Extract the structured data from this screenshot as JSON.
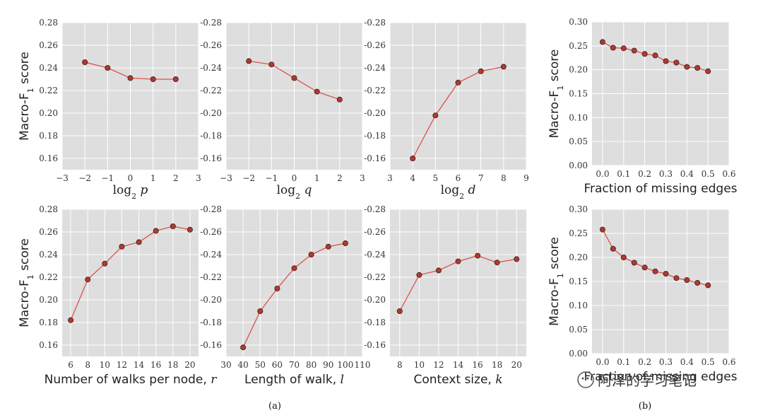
{
  "colors": {
    "background": "#dedede",
    "line": "#d9534f",
    "marker_fill": "#b03a2e",
    "marker_edge": "#3a1c1c",
    "grid": "#ffffff"
  },
  "captions": {
    "a": "(a)",
    "b": "(b)"
  },
  "watermark": "阿泽的学习笔记",
  "chart_data": [
    {
      "id": "p1",
      "type": "line",
      "x": [
        -2,
        -1,
        0,
        1,
        2
      ],
      "values": [
        0.245,
        0.24,
        0.231,
        0.23,
        0.23
      ],
      "xlim": [
        -3,
        3
      ],
      "ylim": [
        0.15,
        0.28
      ],
      "xticks": [
        "−3",
        "−2",
        "−1",
        "0",
        "1",
        "2",
        "3"
      ],
      "xtick_values": [
        -3,
        -2,
        -1,
        0,
        1,
        2,
        3
      ],
      "yticks": [
        "0.16",
        "0.18",
        "0.20",
        "0.22",
        "0.24",
        "0.26",
        "0.28"
      ],
      "ytick_values": [
        0.16,
        0.18,
        0.2,
        0.22,
        0.24,
        0.26,
        0.28
      ],
      "ylabel": "Macro-F",
      "ylabel_sub": "1",
      "ylabel_tail": " score",
      "xlabel_prefix": "log",
      "xlabel_sub": "2",
      "xlabel_var": " p"
    },
    {
      "id": "p2",
      "type": "line",
      "x": [
        -2,
        -1,
        0,
        1,
        2
      ],
      "values": [
        0.246,
        0.243,
        0.231,
        0.219,
        0.212
      ],
      "xlim": [
        -3,
        3
      ],
      "ylim": [
        0.15,
        0.28
      ],
      "xticks": [
        "−3",
        "−2",
        "−1",
        "0",
        "1",
        "2",
        "3"
      ],
      "xtick_values": [
        -3,
        -2,
        -1,
        0,
        1,
        2,
        3
      ],
      "yticks": [
        "-0.16",
        "-0.18",
        "-0.20",
        "-0.22",
        "-0.24",
        "-0.26",
        "-0.28"
      ],
      "ytick_values": [
        0.16,
        0.18,
        0.2,
        0.22,
        0.24,
        0.26,
        0.28
      ],
      "xlabel_prefix": "log",
      "xlabel_sub": "2",
      "xlabel_var": " q"
    },
    {
      "id": "p3",
      "type": "line",
      "x": [
        4,
        5,
        6,
        7,
        8
      ],
      "values": [
        0.16,
        0.198,
        0.227,
        0.237,
        0.241
      ],
      "xlim": [
        3,
        9
      ],
      "ylim": [
        0.15,
        0.28
      ],
      "xticks": [
        "3",
        "4",
        "5",
        "6",
        "7",
        "8",
        "9"
      ],
      "xtick_values": [
        3,
        4,
        5,
        6,
        7,
        8,
        9
      ],
      "yticks": [
        "-0.16",
        "-0.18",
        "-0.20",
        "-0.22",
        "-0.24",
        "-0.26",
        "-0.28"
      ],
      "ytick_values": [
        0.16,
        0.18,
        0.2,
        0.22,
        0.24,
        0.26,
        0.28
      ],
      "xlabel_prefix": "log",
      "xlabel_sub": "2",
      "xlabel_var": " d"
    },
    {
      "id": "p4",
      "type": "line",
      "x": [
        0.0,
        0.05,
        0.1,
        0.15,
        0.2,
        0.25,
        0.3,
        0.35,
        0.4,
        0.45,
        0.5
      ],
      "values": [
        0.258,
        0.246,
        0.245,
        0.24,
        0.233,
        0.23,
        0.218,
        0.215,
        0.206,
        0.204,
        0.197
      ],
      "xlim": [
        -0.05,
        0.6
      ],
      "ylim": [
        0.0,
        0.3
      ],
      "xticks": [
        "0.0",
        "0.1",
        "0.2",
        "0.3",
        "0.4",
        "0.5",
        "0.6"
      ],
      "xtick_values": [
        0.0,
        0.1,
        0.2,
        0.3,
        0.4,
        0.5,
        0.6
      ],
      "yticks": [
        "0.00",
        "0.05",
        "0.10",
        "0.15",
        "0.20",
        "0.25",
        "0.30"
      ],
      "ytick_values": [
        0.0,
        0.05,
        0.1,
        0.15,
        0.2,
        0.25,
        0.3
      ],
      "ylabel": "Macro-F",
      "ylabel_sub": "1",
      "ylabel_tail": " score",
      "xlabel": "Fraction of missing edges"
    },
    {
      "id": "p5",
      "type": "line",
      "x": [
        6,
        8,
        10,
        12,
        14,
        16,
        18,
        20
      ],
      "values": [
        0.182,
        0.218,
        0.232,
        0.247,
        0.251,
        0.261,
        0.265,
        0.262
      ],
      "xlim": [
        5,
        21
      ],
      "ylim": [
        0.15,
        0.28
      ],
      "xticks": [
        "6",
        "8",
        "10",
        "12",
        "14",
        "16",
        "18",
        "20"
      ],
      "xtick_values": [
        6,
        8,
        10,
        12,
        14,
        16,
        18,
        20
      ],
      "yticks": [
        "0.16",
        "0.18",
        "0.20",
        "0.22",
        "0.24",
        "0.26",
        "0.28"
      ],
      "ytick_values": [
        0.16,
        0.18,
        0.2,
        0.22,
        0.24,
        0.26,
        0.28
      ],
      "ylabel": "Macro-F",
      "ylabel_sub": "1",
      "ylabel_tail": " score",
      "xlabel": "Number of walks per node, ",
      "xlabel_var": "r"
    },
    {
      "id": "p6",
      "type": "line",
      "x": [
        40,
        50,
        60,
        70,
        80,
        90,
        100
      ],
      "values": [
        0.158,
        0.19,
        0.21,
        0.228,
        0.24,
        0.247,
        0.25
      ],
      "xlim": [
        30,
        110
      ],
      "ylim": [
        0.15,
        0.28
      ],
      "xticks": [
        "30",
        "40",
        "50",
        "60",
        "70",
        "80",
        "90",
        "100",
        "110"
      ],
      "xtick_values": [
        30,
        40,
        50,
        60,
        70,
        80,
        90,
        100,
        110
      ],
      "yticks": [
        "-0.16",
        "-0.18",
        "-0.20",
        "-0.22",
        "-0.24",
        "-0.26",
        "-0.28"
      ],
      "ytick_values": [
        0.16,
        0.18,
        0.2,
        0.22,
        0.24,
        0.26,
        0.28
      ],
      "xlabel": "Length of walk, ",
      "xlabel_var": "l"
    },
    {
      "id": "p7",
      "type": "line",
      "x": [
        8,
        10,
        12,
        14,
        16,
        18,
        20
      ],
      "values": [
        0.19,
        0.222,
        0.226,
        0.234,
        0.239,
        0.233,
        0.236
      ],
      "xlim": [
        7,
        21
      ],
      "ylim": [
        0.15,
        0.28
      ],
      "xticks": [
        "8",
        "10",
        "12",
        "14",
        "16",
        "18",
        "20"
      ],
      "xtick_values": [
        8,
        10,
        12,
        14,
        16,
        18,
        20
      ],
      "yticks": [
        "-0.16",
        "-0.18",
        "-0.20",
        "-0.22",
        "-0.24",
        "-0.26",
        "-0.28"
      ],
      "ytick_values": [
        0.16,
        0.18,
        0.2,
        0.22,
        0.24,
        0.26,
        0.28
      ],
      "xlabel": "Context size, ",
      "xlabel_var": "k"
    },
    {
      "id": "p8",
      "type": "line",
      "x": [
        0.0,
        0.05,
        0.1,
        0.15,
        0.2,
        0.25,
        0.3,
        0.35,
        0.4,
        0.45,
        0.5
      ],
      "values": [
        0.258,
        0.218,
        0.2,
        0.189,
        0.179,
        0.171,
        0.166,
        0.157,
        0.153,
        0.147,
        0.142
      ],
      "xlim": [
        -0.05,
        0.6
      ],
      "ylim": [
        0.0,
        0.3
      ],
      "xticks": [
        "0.0",
        "0.1",
        "0.2",
        "0.3",
        "0.4",
        "0.5",
        "0.6"
      ],
      "xtick_values": [
        0.0,
        0.1,
        0.2,
        0.3,
        0.4,
        0.5,
        0.6
      ],
      "yticks": [
        "0.00",
        "0.05",
        "0.10",
        "0.15",
        "0.20",
        "0.25",
        "0.30"
      ],
      "ytick_values": [
        0.0,
        0.05,
        0.1,
        0.15,
        0.2,
        0.25,
        0.3
      ],
      "ylabel": "Macro-F",
      "ylabel_sub": "1",
      "ylabel_tail": " score",
      "xlabel": "Fraction of missing edges"
    }
  ]
}
